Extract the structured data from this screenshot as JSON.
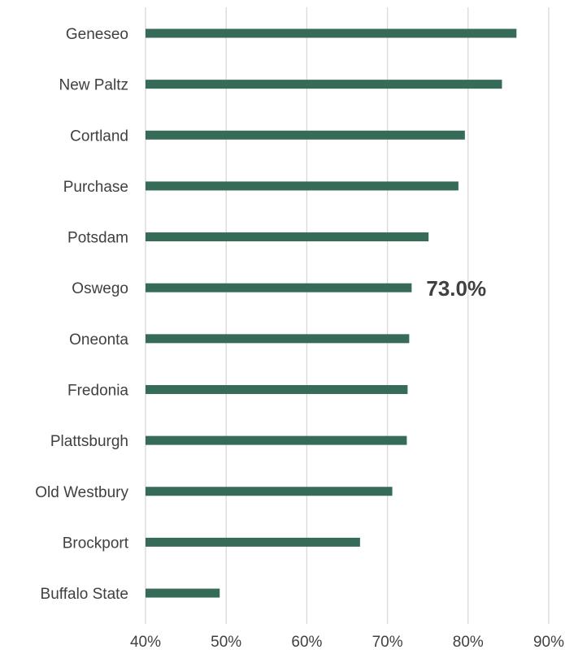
{
  "chart_data": {
    "type": "bar",
    "orientation": "horizontal",
    "title": "",
    "xlabel": "",
    "ylabel": "",
    "categories": [
      "Geneseo",
      "New Paltz",
      "Cortland",
      "Purchase",
      "Potsdam",
      "Oswego",
      "Oneonta",
      "Fredonia",
      "Plattsburgh",
      "Old Westbury",
      "Brockport",
      "Buffalo State"
    ],
    "values": [
      86.0,
      84.2,
      79.6,
      78.8,
      75.1,
      73.0,
      72.7,
      72.5,
      72.4,
      70.6,
      66.6,
      49.2
    ],
    "value_format": "percent",
    "xlim": [
      40,
      90
    ],
    "xticks": [
      "40%",
      "50%",
      "60%",
      "70%",
      "80%",
      "90%"
    ],
    "xtick_values": [
      40,
      50,
      60,
      70,
      80,
      90
    ],
    "grid": "vertical",
    "legend": "none",
    "bar_color": "#366b58",
    "gridline_color": "#d9d9d9",
    "text_color": "#404040",
    "data_labels": [
      {
        "category": "Oswego",
        "text": "73.0%"
      }
    ]
  }
}
